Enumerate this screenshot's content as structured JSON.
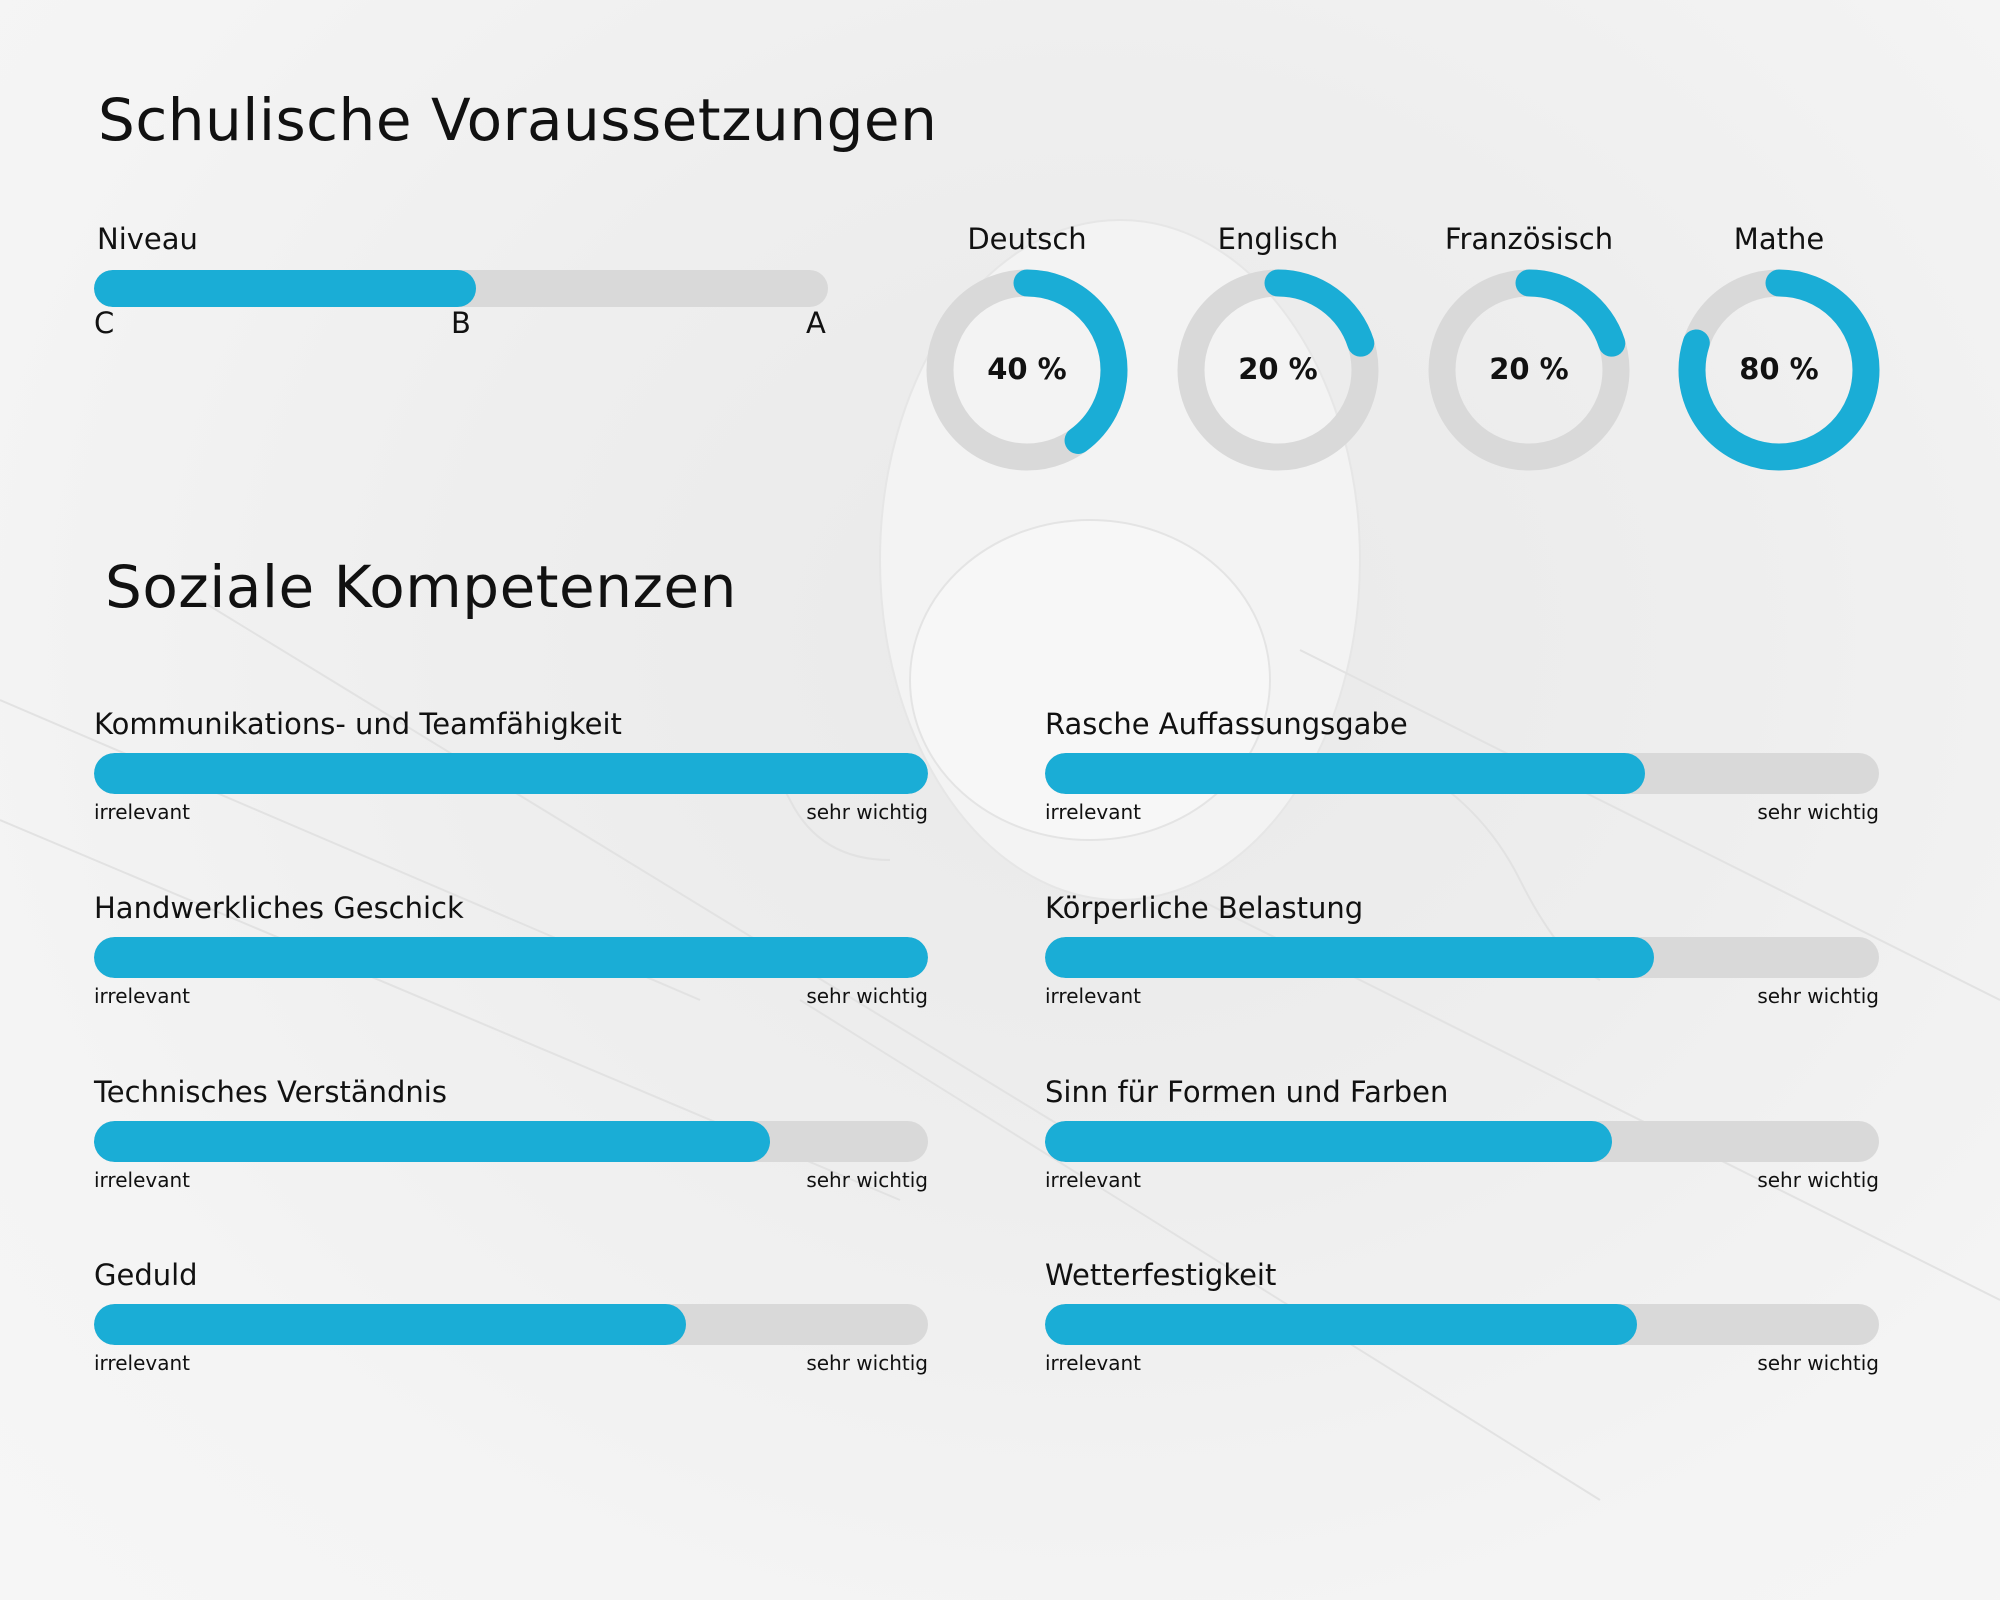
{
  "colors": {
    "accent": "#1aadd6",
    "track": "#d9d9d9",
    "text": "#111111"
  },
  "school": {
    "title": "Schulische Voraussetzungen",
    "niveau": {
      "label": "Niveau",
      "value_percent": 52,
      "ticks": [
        "C",
        "B",
        "A"
      ]
    },
    "subjects": [
      {
        "name": "Deutsch",
        "value": 40,
        "display": "40 %"
      },
      {
        "name": "Englisch",
        "value": 20,
        "display": "20 %"
      },
      {
        "name": "Französisch",
        "value": 20,
        "display": "20 %"
      },
      {
        "name": "Mathe",
        "value": 80,
        "display": "80 %"
      }
    ]
  },
  "social": {
    "title": "Soziale Kompetenzen",
    "scale_min": "irrelevant",
    "scale_max": "sehr wichtig",
    "items": [
      {
        "name": "Kommunikations- und Teamfähigkeit",
        "value_percent": 100
      },
      {
        "name": "Rasche Auffassungsgabe",
        "value_percent": 72
      },
      {
        "name": "Handwerkliches Geschick",
        "value_percent": 100
      },
      {
        "name": "Körperliche Belastung",
        "value_percent": 73
      },
      {
        "name": "Technisches Verständnis",
        "value_percent": 81
      },
      {
        "name": "Sinn für Formen und Farben",
        "value_percent": 68
      },
      {
        "name": "Geduld",
        "value_percent": 71
      },
      {
        "name": "Wetterfestigkeit",
        "value_percent": 71
      }
    ]
  },
  "chart_data": [
    {
      "type": "bar",
      "title": "Niveau",
      "categories": [
        "Niveau"
      ],
      "values": [
        52
      ],
      "ylim": [
        0,
        100
      ],
      "tick_labels": [
        "C",
        "B",
        "A"
      ]
    },
    {
      "type": "pie",
      "title": "Schulische Voraussetzungen",
      "categories": [
        "Deutsch",
        "Englisch",
        "Französisch",
        "Mathe"
      ],
      "values": [
        40,
        20,
        20,
        80
      ],
      "unit": "%"
    },
    {
      "type": "bar",
      "title": "Soziale Kompetenzen",
      "categories": [
        "Kommunikations- und Teamfähigkeit",
        "Rasche Auffassungsgabe",
        "Handwerkliches Geschick",
        "Körperliche Belastung",
        "Technisches Verständnis",
        "Sinn für Formen und Farben",
        "Geduld",
        "Wetterfestigkeit"
      ],
      "values": [
        100,
        72,
        100,
        73,
        81,
        68,
        71,
        71
      ],
      "xlabel": "irrelevant → sehr wichtig",
      "ylim": [
        0,
        100
      ]
    }
  ]
}
